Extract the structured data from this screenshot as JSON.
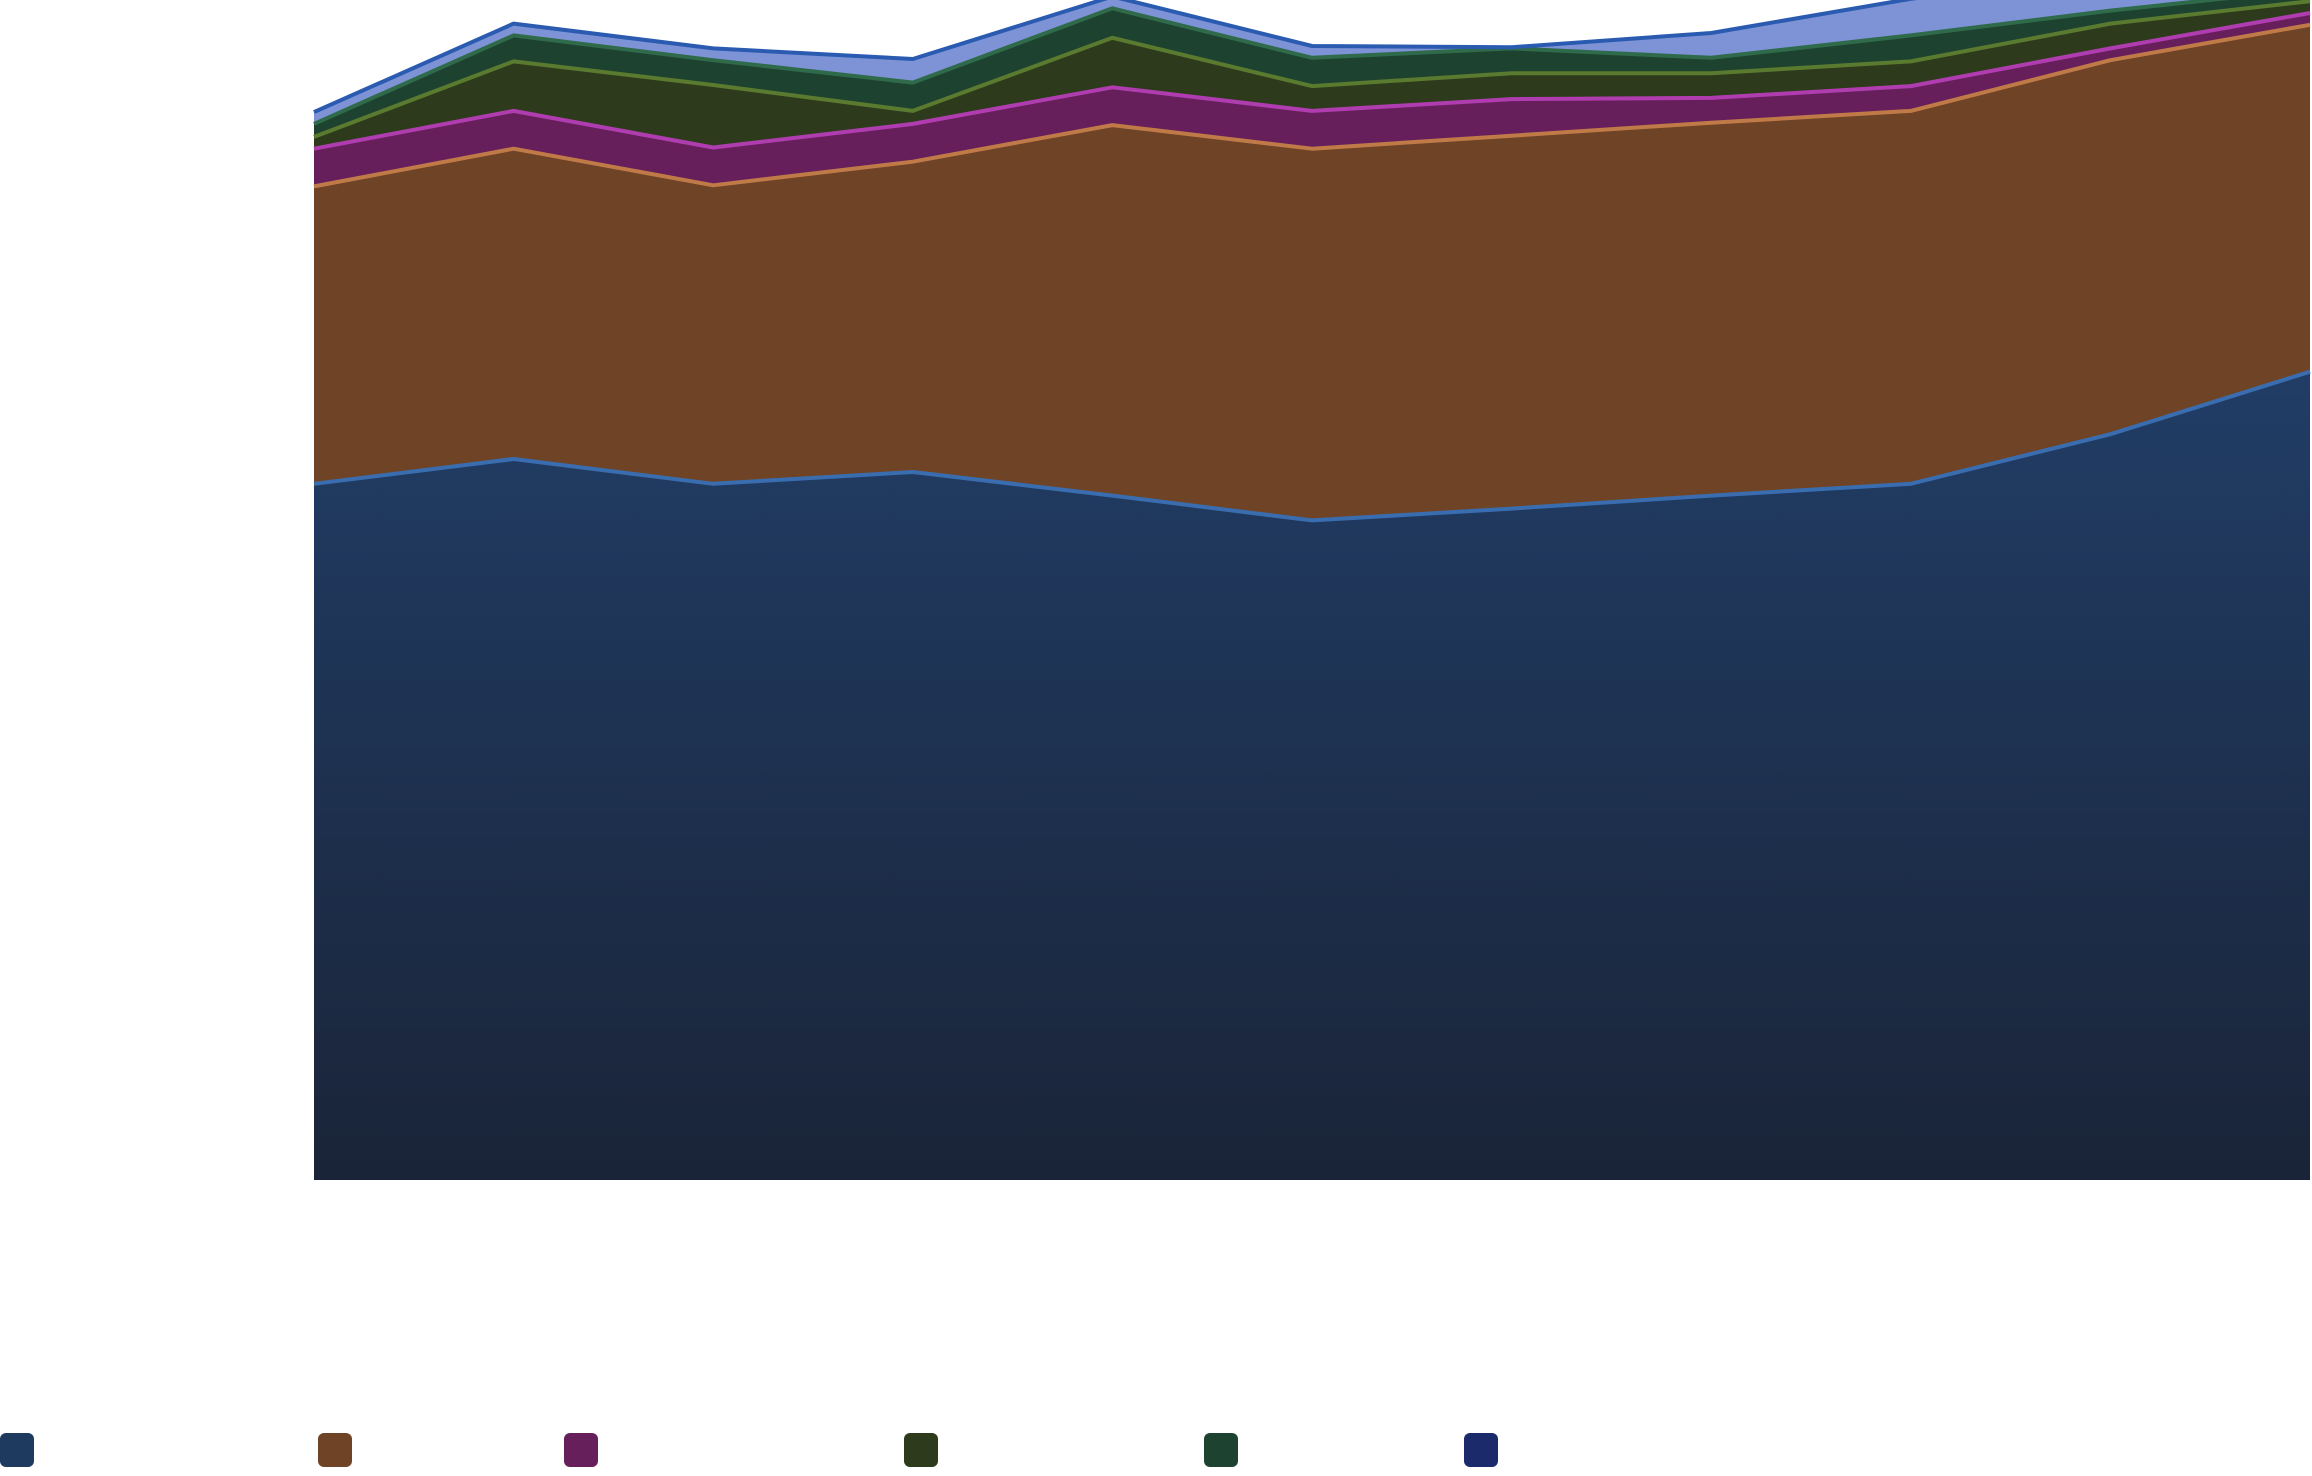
{
  "chart_data": {
    "type": "area",
    "stacked": true,
    "title": "",
    "xlabel": "",
    "ylabel": "",
    "grid": false,
    "legend_position": "bottom-left",
    "x": [
      1,
      2,
      3,
      4,
      5,
      6,
      7,
      8,
      9,
      10,
      11
    ],
    "ylim": [
      0,
      1000
    ],
    "series": [
      {
        "name": "",
        "color": "#1f3a5f",
        "line_color": "#3a6db0",
        "values": [
          590,
          611,
          590,
          600,
          580,
          559,
          569,
          580,
          590,
          632,
          685
        ]
      },
      {
        "name": "",
        "color": "#6e4326",
        "line_color": "#c07a48",
        "values": [
          252,
          263,
          253,
          263,
          314,
          315,
          316,
          316,
          316,
          317,
          294
        ]
      },
      {
        "name": "",
        "color": "#661f5a",
        "line_color": "#b03db0",
        "values": [
          32,
          32,
          32,
          32,
          32,
          32,
          31,
          21,
          21,
          10,
          10
        ]
      },
      {
        "name": "",
        "color": "#2d3a1b",
        "line_color": "#5a7a2f",
        "values": [
          10,
          42,
          53,
          11,
          42,
          21,
          22,
          21,
          21,
          21,
          10
        ]
      },
      {
        "name": "",
        "color": "#1e4230",
        "line_color": "#2f6a4a",
        "values": [
          11,
          22,
          21,
          24,
          25,
          24,
          21,
          13,
          22,
          11,
          10
        ]
      },
      {
        "name": "",
        "color": "#7d93d6",
        "line_color": "#2a5bb0",
        "values": [
          10,
          10,
          10,
          20,
          10,
          10,
          1,
          21,
          31,
          31,
          11
        ]
      }
    ],
    "legend_swatch_colors": [
      "#1f3a5f",
      "#6e4326",
      "#661f5a",
      "#2d3a1b",
      "#1e4230",
      "#1a2a6a"
    ]
  }
}
